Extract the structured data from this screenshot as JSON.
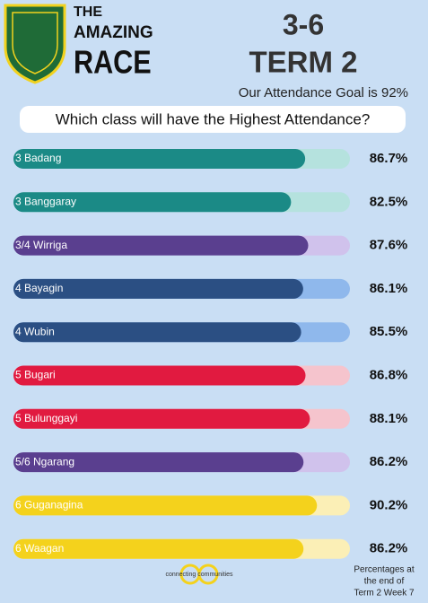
{
  "header": {
    "the": "THE",
    "amazing": "AMAZING",
    "race": "RACE",
    "grades": "3-6",
    "term": "TERM 2",
    "goal": "Our Attendance Goal is 92%",
    "question": "Which class will have the Highest Attendance?"
  },
  "chart_data": {
    "type": "bar",
    "orientation": "horizontal",
    "categories": [
      "3 Badang",
      "3 Banggaray",
      "3/4 Wirriga",
      "4 Bayagin",
      "4 Wubin",
      "5 Bugari",
      "5 Bulunggayi",
      "5/6 Ngarang",
      "6 Guganagina",
      "6 Waagan"
    ],
    "values": [
      86.7,
      82.5,
      87.6,
      86.1,
      85.5,
      86.8,
      88.1,
      86.2,
      90.2,
      86.2
    ],
    "value_labels": [
      "86.7%",
      "82.5%",
      "87.6%",
      "86.1%",
      "85.5%",
      "86.8%",
      "88.1%",
      "86.2%",
      "90.2%",
      "86.2%"
    ],
    "colors": [
      "#1b8a86",
      "#1b8a86",
      "#5a3f8f",
      "#2b4f83",
      "#2b4f83",
      "#e11a40",
      "#e11a40",
      "#5a3f8f",
      "#f4d21c",
      "#f4d21c"
    ],
    "track_colors": [
      "#b5e2de",
      "#b5e2de",
      "#d0c2ec",
      "#8fb8ec",
      "#8fb8ec",
      "#f5c4cd",
      "#f5c4cd",
      "#d0c2ec",
      "#fbefb6",
      "#fbefb6"
    ],
    "xlim": [
      0,
      100
    ]
  },
  "footnote": [
    "Percentages at",
    "the end of",
    "Term 2 Week 7"
  ],
  "logo_text": "connecting communities"
}
